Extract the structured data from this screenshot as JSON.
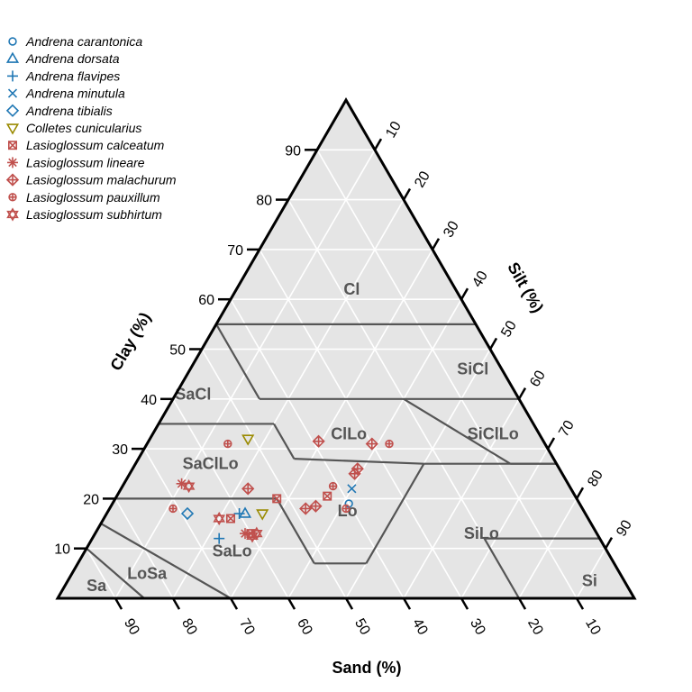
{
  "chart_data": {
    "type": "scatter",
    "subtype": "ternary soil texture triangle",
    "axes": {
      "clay": {
        "label": "Clay (%)",
        "ticks": [
          10,
          20,
          30,
          40,
          50,
          60,
          70,
          80,
          90
        ]
      },
      "silt": {
        "label": "Silt (%)",
        "ticks": [
          10,
          20,
          30,
          40,
          50,
          60,
          70,
          80,
          90
        ]
      },
      "sand": {
        "label": "Sand (%)",
        "ticks": [
          90,
          80,
          70,
          60,
          50,
          40,
          30,
          20,
          10
        ]
      }
    },
    "background_color": "#e5e5e5",
    "grid": true,
    "legend_position": "top-left",
    "regions": [
      {
        "name": "Cl",
        "label_at": {
          "sand": 18,
          "clay": 62
        }
      },
      {
        "name": "SiCl",
        "label_at": {
          "sand": 5,
          "clay": 46
        }
      },
      {
        "name": "SaCl",
        "label_at": {
          "sand": 56,
          "clay": 41
        }
      },
      {
        "name": "ClLo",
        "label_at": {
          "sand": 33,
          "clay": 33
        }
      },
      {
        "name": "SiClLo",
        "label_at": {
          "sand": 8,
          "clay": 33
        }
      },
      {
        "name": "SaClLo",
        "label_at": {
          "sand": 60,
          "clay": 27
        }
      },
      {
        "name": "Lo",
        "label_at": {
          "sand": 41,
          "clay": 17.5
        }
      },
      {
        "name": "SiLo",
        "label_at": {
          "sand": 20,
          "clay": 13
        }
      },
      {
        "name": "SaLo",
        "label_at": {
          "sand": 65,
          "clay": 9.5
        }
      },
      {
        "name": "LoSa",
        "label_at": {
          "sand": 82,
          "clay": 5
        }
      },
      {
        "name": "Sa",
        "label_at": {
          "sand": 92,
          "clay": 2.5
        }
      },
      {
        "name": "Si",
        "label_at": {
          "sand": 6,
          "clay": 3.5
        }
      }
    ],
    "series": [
      {
        "name": "Andrena carantonica",
        "color": "#1f77b4",
        "marker": "circle-open",
        "points": [
          {
            "sand": 40,
            "clay": 19
          }
        ]
      },
      {
        "name": "Andrena dorsata",
        "color": "#1f77b4",
        "marker": "triangle-up",
        "points": [
          {
            "sand": 59,
            "clay": 17
          }
        ]
      },
      {
        "name": "Andrena flavipes",
        "color": "#1f77b4",
        "marker": "plus",
        "points": [
          {
            "sand": 66,
            "clay": 12
          },
          {
            "sand": 60,
            "clay": 17
          }
        ]
      },
      {
        "name": "Andrena minutula",
        "color": "#1f77b4",
        "marker": "x",
        "points": [
          {
            "sand": 38,
            "clay": 22
          }
        ]
      },
      {
        "name": "Andrena tibialis",
        "color": "#1f77b4",
        "marker": "diamond",
        "points": [
          {
            "sand": 69,
            "clay": 17
          }
        ]
      },
      {
        "name": "Colletes cunicularius",
        "color": "#9a8a00",
        "marker": "triangle-down",
        "points": [
          {
            "sand": 56,
            "clay": 17
          },
          {
            "sand": 51,
            "clay": 32
          }
        ]
      },
      {
        "name": "Lasioglossum calceatum",
        "color": "#c0504d",
        "marker": "square-x",
        "points": [
          {
            "sand": 60,
            "clay": 13
          },
          {
            "sand": 52,
            "clay": 20
          },
          {
            "sand": 43,
            "clay": 20.5
          },
          {
            "sand": 62,
            "clay": 16
          }
        ]
      },
      {
        "name": "Lasioglossum lineare",
        "color": "#c0504d",
        "marker": "asterisk",
        "points": [
          {
            "sand": 67,
            "clay": 23
          },
          {
            "sand": 61,
            "clay": 13
          }
        ]
      },
      {
        "name": "Lasioglossum malachurum",
        "color": "#c0504d",
        "marker": "diamond-plus",
        "points": [
          {
            "sand": 56,
            "clay": 22
          },
          {
            "sand": 48,
            "clay": 18
          },
          {
            "sand": 46,
            "clay": 18.5
          },
          {
            "sand": 36,
            "clay": 25
          },
          {
            "sand": 35,
            "clay": 26
          },
          {
            "sand": 30,
            "clay": 31
          },
          {
            "sand": 39,
            "clay": 31.5
          }
        ]
      },
      {
        "name": "Lasioglossum pauxillum",
        "color": "#c0504d",
        "marker": "circle-plus",
        "points": [
          {
            "sand": 55,
            "clay": 31
          },
          {
            "sand": 71,
            "clay": 18
          },
          {
            "sand": 41,
            "clay": 22.5
          },
          {
            "sand": 41,
            "clay": 18
          },
          {
            "sand": 27,
            "clay": 31
          }
        ]
      },
      {
        "name": "Lasioglossum subhirtum",
        "color": "#c0504d",
        "marker": "hexagram",
        "points": [
          {
            "sand": 66,
            "clay": 22.5
          },
          {
            "sand": 64,
            "clay": 16
          },
          {
            "sand": 60,
            "clay": 12.5
          },
          {
            "sand": 59,
            "clay": 13
          }
        ]
      }
    ]
  }
}
